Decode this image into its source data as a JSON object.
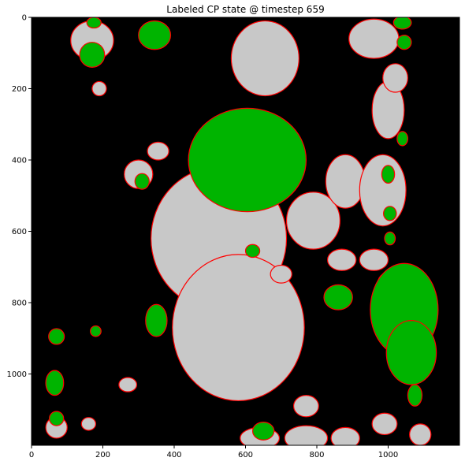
{
  "chart_data": {
    "type": "heatmap",
    "title": "Labeled CP state @ timestep 659",
    "xlabel": "",
    "ylabel": "",
    "xlim": [
      0,
      1200
    ],
    "ylim": [
      1200,
      0
    ],
    "xticks": [
      0,
      200,
      400,
      600,
      800,
      1000
    ],
    "yticks": [
      0,
      200,
      400,
      600,
      800,
      1000
    ],
    "grid": false,
    "legend": "none",
    "colors": {
      "background": "#000000",
      "grey_region": "#c8c8c8",
      "green_region": "#00b400",
      "boundary": "#ff0000"
    },
    "regions": {
      "grey": [
        {
          "cx": 655,
          "cy": 115,
          "rx": 95,
          "ry": 105
        },
        {
          "cx": 525,
          "cy": 620,
          "rx": 190,
          "ry": 200
        },
        {
          "cx": 580,
          "cy": 870,
          "rx": 185,
          "ry": 205
        },
        {
          "cx": 170,
          "cy": 65,
          "rx": 60,
          "ry": 55
        },
        {
          "cx": 790,
          "cy": 570,
          "rx": 75,
          "ry": 80
        },
        {
          "cx": 880,
          "cy": 460,
          "rx": 55,
          "ry": 75
        },
        {
          "cx": 985,
          "cy": 485,
          "rx": 65,
          "ry": 100
        },
        {
          "cx": 1000,
          "cy": 260,
          "rx": 45,
          "ry": 80
        },
        {
          "cx": 960,
          "cy": 60,
          "rx": 70,
          "ry": 55
        },
        {
          "cx": 1020,
          "cy": 170,
          "rx": 35,
          "ry": 40
        },
        {
          "cx": 870,
          "cy": 680,
          "rx": 40,
          "ry": 30
        },
        {
          "cx": 960,
          "cy": 680,
          "rx": 40,
          "ry": 30
        },
        {
          "cx": 1000,
          "cy": 750,
          "rx": 30,
          "ry": 35
        },
        {
          "cx": 770,
          "cy": 1090,
          "rx": 35,
          "ry": 30
        },
        {
          "cx": 770,
          "cy": 1180,
          "rx": 60,
          "ry": 35
        },
        {
          "cx": 880,
          "cy": 1180,
          "rx": 40,
          "ry": 30
        },
        {
          "cx": 990,
          "cy": 1140,
          "rx": 35,
          "ry": 30
        },
        {
          "cx": 1090,
          "cy": 1170,
          "rx": 30,
          "ry": 30
        },
        {
          "cx": 640,
          "cy": 1180,
          "rx": 55,
          "ry": 30
        },
        {
          "cx": 70,
          "cy": 1150,
          "rx": 30,
          "ry": 30
        },
        {
          "cx": 190,
          "cy": 200,
          "rx": 20,
          "ry": 20
        },
        {
          "cx": 270,
          "cy": 1030,
          "rx": 25,
          "ry": 20
        },
        {
          "cx": 300,
          "cy": 440,
          "rx": 40,
          "ry": 40
        },
        {
          "cx": 355,
          "cy": 375,
          "rx": 30,
          "ry": 25
        },
        {
          "cx": 700,
          "cy": 720,
          "rx": 30,
          "ry": 25
        },
        {
          "cx": 160,
          "cy": 1140,
          "rx": 20,
          "ry": 18
        }
      ],
      "green": [
        {
          "cx": 605,
          "cy": 400,
          "rx": 165,
          "ry": 145
        },
        {
          "cx": 1045,
          "cy": 820,
          "rx": 95,
          "ry": 130
        },
        {
          "cx": 1065,
          "cy": 940,
          "rx": 70,
          "ry": 90
        },
        {
          "cx": 860,
          "cy": 785,
          "rx": 40,
          "ry": 35
        },
        {
          "cx": 345,
          "cy": 50,
          "rx": 45,
          "ry": 40
        },
        {
          "cx": 170,
          "cy": 105,
          "rx": 35,
          "ry": 35
        },
        {
          "cx": 175,
          "cy": 15,
          "rx": 20,
          "ry": 15
        },
        {
          "cx": 1040,
          "cy": 15,
          "rx": 25,
          "ry": 18
        },
        {
          "cx": 1045,
          "cy": 70,
          "rx": 20,
          "ry": 20
        },
        {
          "cx": 1000,
          "cy": 440,
          "rx": 18,
          "ry": 25
        },
        {
          "cx": 1005,
          "cy": 550,
          "rx": 18,
          "ry": 20
        },
        {
          "cx": 1005,
          "cy": 620,
          "rx": 15,
          "ry": 18
        },
        {
          "cx": 65,
          "cy": 1025,
          "rx": 25,
          "ry": 35
        },
        {
          "cx": 70,
          "cy": 1125,
          "rx": 20,
          "ry": 20
        },
        {
          "cx": 70,
          "cy": 895,
          "rx": 22,
          "ry": 22
        },
        {
          "cx": 350,
          "cy": 850,
          "rx": 30,
          "ry": 45
        },
        {
          "cx": 310,
          "cy": 460,
          "rx": 20,
          "ry": 22
        },
        {
          "cx": 620,
          "cy": 655,
          "rx": 20,
          "ry": 18
        },
        {
          "cx": 650,
          "cy": 1160,
          "rx": 30,
          "ry": 25
        },
        {
          "cx": 1075,
          "cy": 1060,
          "rx": 20,
          "ry": 30
        },
        {
          "cx": 1040,
          "cy": 340,
          "rx": 15,
          "ry": 20
        },
        {
          "cx": 180,
          "cy": 880,
          "rx": 15,
          "ry": 15
        }
      ]
    }
  }
}
